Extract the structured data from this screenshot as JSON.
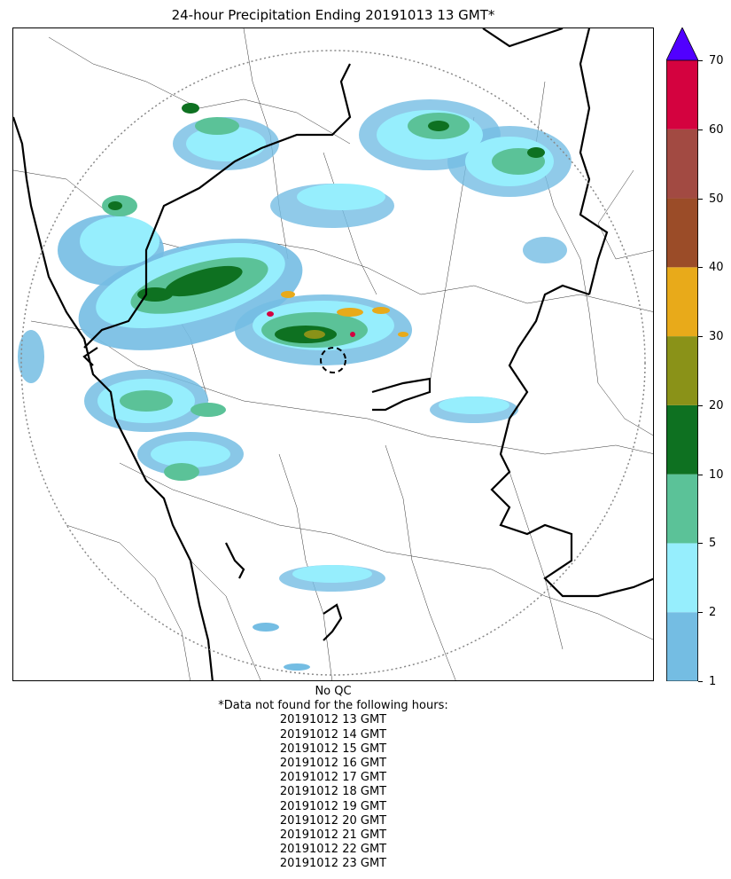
{
  "title": "24-hour Precipitation Ending 20191013 13 GMT*",
  "colorbar": {
    "ticks": [
      "1",
      "2",
      "5",
      "10",
      "20",
      "30",
      "40",
      "50",
      "60",
      "70"
    ],
    "colors": [
      "#74bde3",
      "#96eefd",
      "#5bc298",
      "#0e7121",
      "#8a9218",
      "#e8aa1a",
      "#9b4c28",
      "#a24a42",
      "#d4023f"
    ],
    "extend_color": "#5100ff"
  },
  "footnote": {
    "qc": "No QC",
    "header": "*Data not found for the following hours:",
    "hours": [
      "20191012 13 GMT",
      "20191012 14 GMT",
      "20191012 15 GMT",
      "20191012 16 GMT",
      "20191012 17 GMT",
      "20191012 18 GMT",
      "20191012 19 GMT",
      "20191012 20 GMT",
      "20191012 21 GMT",
      "20191012 22 GMT",
      "20191012 23 GMT"
    ]
  },
  "map": {
    "range_ring_color": "#888888",
    "border_color": "#000000"
  }
}
